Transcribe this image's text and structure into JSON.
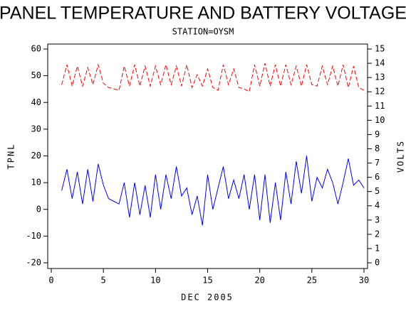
{
  "chart_data": {
    "type": "line",
    "title": "PANEL TEMPERATURE AND BATTERY VOLTAGE",
    "subtitle": "STATION=OYSM",
    "xlabel": "DEC 2005",
    "ylabel": "TPNL",
    "y2label": "VOLTS",
    "x": [
      1,
      1.5,
      2,
      2.5,
      3,
      3.5,
      4,
      4.5,
      5,
      5.5,
      6,
      6.5,
      7,
      7.5,
      8,
      8.5,
      9,
      9.5,
      10,
      10.5,
      11,
      11.5,
      12,
      12.5,
      13,
      13.5,
      14,
      14.5,
      15,
      15.5,
      16,
      16.5,
      17,
      17.5,
      18,
      18.5,
      19,
      19.5,
      20,
      20.5,
      21,
      21.5,
      22,
      22.5,
      23,
      23.5,
      24,
      24.5,
      25,
      25.5,
      26,
      26.5,
      27,
      27.5,
      28,
      28.5,
      29,
      29.5,
      30
    ],
    "series": [
      {
        "color": "#0000ff",
        "axis": "y",
        "values": [
          7,
          15,
          4,
          14,
          2,
          15,
          3,
          17,
          9,
          4,
          3,
          2,
          10,
          -3,
          10,
          -2,
          9,
          -3,
          13,
          0,
          13,
          4,
          16,
          5,
          8,
          -2,
          5,
          -6,
          13,
          0,
          8,
          16,
          4,
          11,
          4,
          13,
          0,
          13,
          -4,
          13,
          -5,
          10,
          -4,
          14,
          2,
          18,
          6,
          20,
          3,
          12,
          8,
          15,
          10,
          2,
          10,
          19,
          9,
          11,
          8
        ]
      },
      {
        "color": "#ff0000",
        "axis": "y2",
        "dashed": true,
        "values": [
          12.5,
          13.9,
          12.4,
          13.8,
          12.4,
          13.7,
          12.5,
          13.9,
          12.6,
          12.3,
          12.2,
          12.1,
          13.8,
          12.4,
          13.9,
          12.4,
          13.8,
          12.4,
          13.8,
          12.5,
          13.9,
          12.5,
          13.8,
          12.4,
          13.9,
          12.3,
          13.2,
          12.4,
          13.6,
          12.3,
          12.1,
          13.9,
          12.5,
          13.6,
          12.3,
          12.2,
          12.0,
          13.9,
          12.4,
          14.0,
          12.4,
          13.9,
          12.4,
          13.9,
          12.5,
          13.8,
          12.4,
          13.9,
          12.5,
          12.4,
          13.8,
          12.5,
          13.8,
          12.4,
          13.9,
          12.3,
          13.8,
          12.3,
          12.1
        ]
      }
    ],
    "xlim": [
      0,
      30
    ],
    "xticks": [
      0,
      5,
      10,
      15,
      20,
      25,
      30
    ],
    "ylim": [
      -20,
      60
    ],
    "yticks": [
      -20,
      -10,
      0,
      10,
      20,
      30,
      40,
      50,
      60
    ],
    "y2lim": [
      0,
      15
    ],
    "y2ticks": [
      0,
      1,
      2,
      3,
      4,
      5,
      6,
      7,
      8,
      9,
      10,
      11,
      12,
      13,
      14,
      15
    ]
  }
}
